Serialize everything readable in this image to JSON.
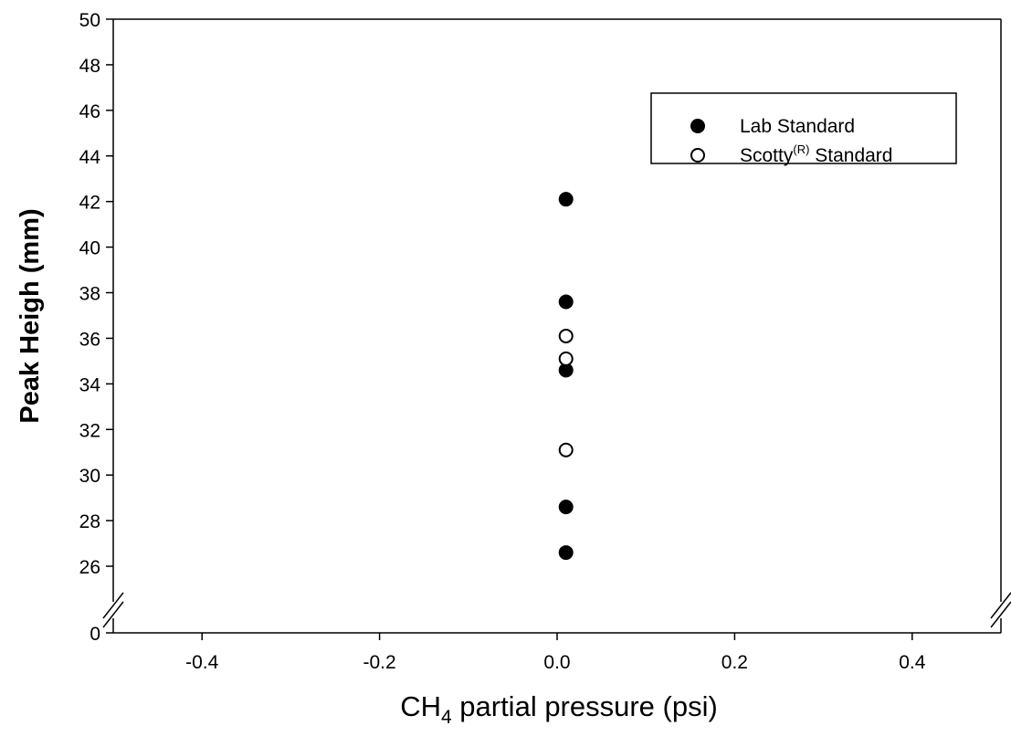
{
  "chart_data": {
    "type": "scatter",
    "xlabel_main": "CH",
    "xlabel_sub": "4",
    "xlabel_rest": " partial pressure (psi)",
    "ylabel": "Peak Heigh (mm)",
    "xlim": [
      -0.5,
      0.5
    ],
    "x_ticks": [
      -0.4,
      -0.2,
      0.0,
      0.2,
      0.4
    ],
    "x_tick_labels": [
      "-0.4",
      "-0.2",
      "0.0",
      "0.2",
      "0.4"
    ],
    "y_break": true,
    "y_lower_ticks": [
      0
    ],
    "y_lower_tick_labels": [
      "0"
    ],
    "ylim_upper": [
      25,
      50
    ],
    "y_upper_ticks": [
      26,
      28,
      30,
      32,
      34,
      36,
      38,
      40,
      42,
      44,
      46,
      48,
      50
    ],
    "y_upper_tick_labels": [
      "26",
      "28",
      "30",
      "32",
      "34",
      "36",
      "38",
      "40",
      "42",
      "44",
      "46",
      "48",
      "50"
    ],
    "grid": false,
    "legend_position": "top-right",
    "series": [
      {
        "name": "Lab Standard",
        "marker": "filled-circle",
        "x": [
          0.01,
          0.01,
          0.01,
          0.01,
          0.01
        ],
        "y": [
          42.1,
          37.6,
          34.6,
          28.6,
          26.6
        ]
      },
      {
        "name": "Scotty",
        "name_sup": "(R)",
        "name_rest": " Standard",
        "marker": "open-circle",
        "x": [
          0.01,
          0.01,
          0.01
        ],
        "y": [
          36.1,
          35.1,
          31.1
        ]
      }
    ]
  }
}
